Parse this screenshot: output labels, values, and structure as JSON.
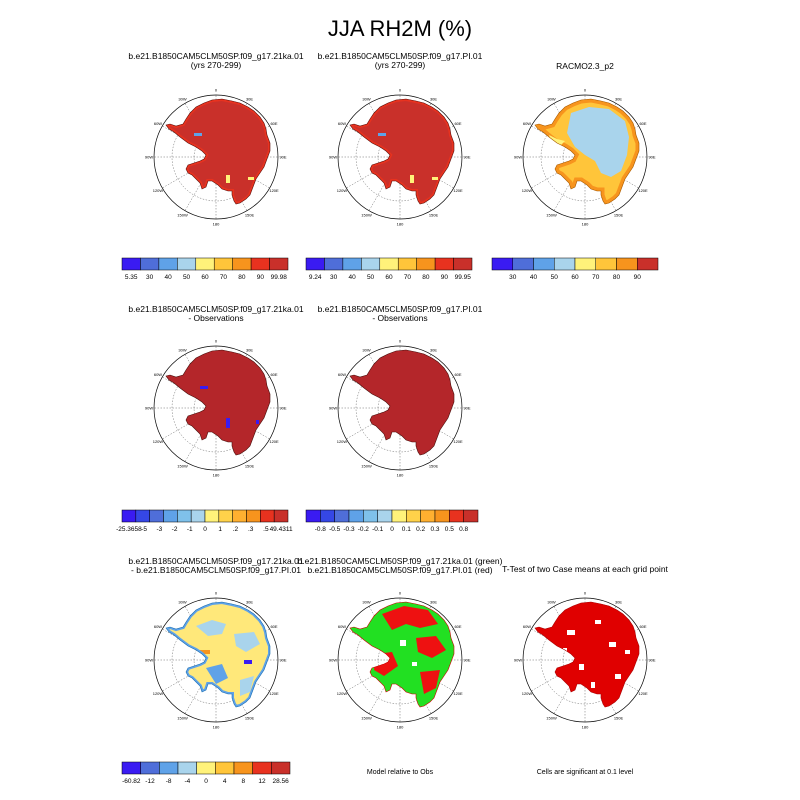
{
  "title": "JJA RH2M (%)",
  "longitude_labels": [
    "0",
    "30E",
    "60E",
    "90E",
    "120E",
    "150E",
    "180",
    "150W",
    "120W",
    "90W",
    "60W",
    "30W"
  ],
  "panels": [
    {
      "id": "case1",
      "title_lines": [
        "b.e21.B1850CAM5CLM50SP.f09_g17.21ka.01",
        "(yrs 270-299)"
      ],
      "fill": "#c9302a",
      "coast": "#5f1410",
      "features": "edges"
    },
    {
      "id": "case2",
      "title_lines": [
        "b.e21.B1850CAM5CLM50SP.f09_g17.PI.01",
        "(yrs 270-299)"
      ],
      "fill": "#c9302a",
      "coast": "#5f1410",
      "features": "edges"
    },
    {
      "id": "obs",
      "title_lines": [
        "RACMO2.3_p2"
      ],
      "fill": "#ffc53a",
      "coast": "#a85a00",
      "features": "obs"
    },
    {
      "id": "diff1",
      "title_lines": [
        "b.e21.B1850CAM5CLM50SP.f09_g17.21ka.01",
        "- Observations"
      ],
      "fill": "#b4262a",
      "coast": "#4a0f0c",
      "features": "diff1"
    },
    {
      "id": "diff2",
      "title_lines": [
        "b.e21.B1850CAM5CLM50SP.f09_g17.PI.01",
        "- Observations"
      ],
      "fill": "#b4262a",
      "coast": "#4a0f0c",
      "features": "none"
    },
    {
      "id": "casediff",
      "title_lines": [
        "b.e21.B1850CAM5CLM50SP.f09_g17.21ka.01",
        "- b.e21.B1850CAM5CLM50SP.f09_g17.PI.01"
      ],
      "fill": "#ffe87a",
      "coast": "#1a6fb3",
      "features": "casediff"
    },
    {
      "id": "relative",
      "title_lines": [
        "b.e21.B1850CAM5CLM50SP.f09_g17.21ka.01 (green)",
        "b.e21.B1850CAM5CLM50SP.f09_g17.PI.01 (red)"
      ],
      "fill": "#22e022",
      "coast": "#cc0000",
      "features": "relative"
    },
    {
      "id": "ttest",
      "title_lines": [
        "T-Test of two Case means at each grid point"
      ],
      "fill": "#e00000",
      "coast": "#aa0000",
      "features": "ttest"
    }
  ],
  "colorbars": [
    {
      "id": "cb1",
      "labels": [
        "5.35",
        "30",
        "40",
        "50",
        "60",
        "70",
        "80",
        "90",
        "99.98"
      ],
      "colors": [
        "#3a1bf2",
        "#4f6ed9",
        "#5fa2e8",
        "#a9d4ec",
        "#fff27a",
        "#ffc53a",
        "#f7941d",
        "#e8321f",
        "#c9302a"
      ]
    },
    {
      "id": "cb2",
      "labels": [
        "9.24",
        "30",
        "40",
        "50",
        "60",
        "70",
        "80",
        "90",
        "99.95"
      ],
      "colors": [
        "#3a1bf2",
        "#4f6ed9",
        "#5fa2e8",
        "#a9d4ec",
        "#fff27a",
        "#ffc53a",
        "#f7941d",
        "#e8321f",
        "#c9302a"
      ]
    },
    {
      "id": "cb3",
      "labels": [
        "30",
        "40",
        "50",
        "60",
        "70",
        "80",
        "90"
      ],
      "colors": [
        "#3a1bf2",
        "#4f6ed9",
        "#5fa2e8",
        "#a9d4ec",
        "#fff27a",
        "#ffc53a",
        "#f7941d",
        "#c9302a"
      ]
    },
    {
      "id": "cb4",
      "labels": [
        "-25.3658",
        "-5",
        "-3",
        "-2",
        "-1",
        "0",
        "1",
        ".2",
        ".3",
        ".5",
        "49.4311"
      ],
      "colors": [
        "#3a1bf2",
        "#3547e6",
        "#4f6ed9",
        "#5fa2e8",
        "#7fc1ea",
        "#a9d4ec",
        "#fff27a",
        "#ffd24a",
        "#ffb030",
        "#f7941d",
        "#e8321f",
        "#c9302a"
      ]
    },
    {
      "id": "cb5",
      "labels": [
        "-0.8",
        "-0.5",
        "-0.3",
        "-0.2",
        "-0.1",
        "0",
        "0.1",
        "0.2",
        "0.3",
        "0.5",
        "0.8"
      ],
      "colors": [
        "#3a1bf2",
        "#3547e6",
        "#4f6ed9",
        "#5fa2e8",
        "#7fc1ea",
        "#a9d4ec",
        "#fff27a",
        "#ffd24a",
        "#ffb030",
        "#f7941d",
        "#e8321f",
        "#c9302a"
      ]
    },
    {
      "id": "cb6",
      "labels": [
        "-60.82",
        "-12",
        "-8",
        "-4",
        "0",
        "4",
        "8",
        "12",
        "28.56"
      ],
      "colors": [
        "#3a1bf2",
        "#4f6ed9",
        "#5fa2e8",
        "#a9d4ec",
        "#fff27a",
        "#ffc53a",
        "#f7941d",
        "#e8321f",
        "#c9302a"
      ]
    }
  ],
  "notes": {
    "relative": "Model relative to Obs",
    "ttest": "Cells are significant at 0.1 level"
  }
}
